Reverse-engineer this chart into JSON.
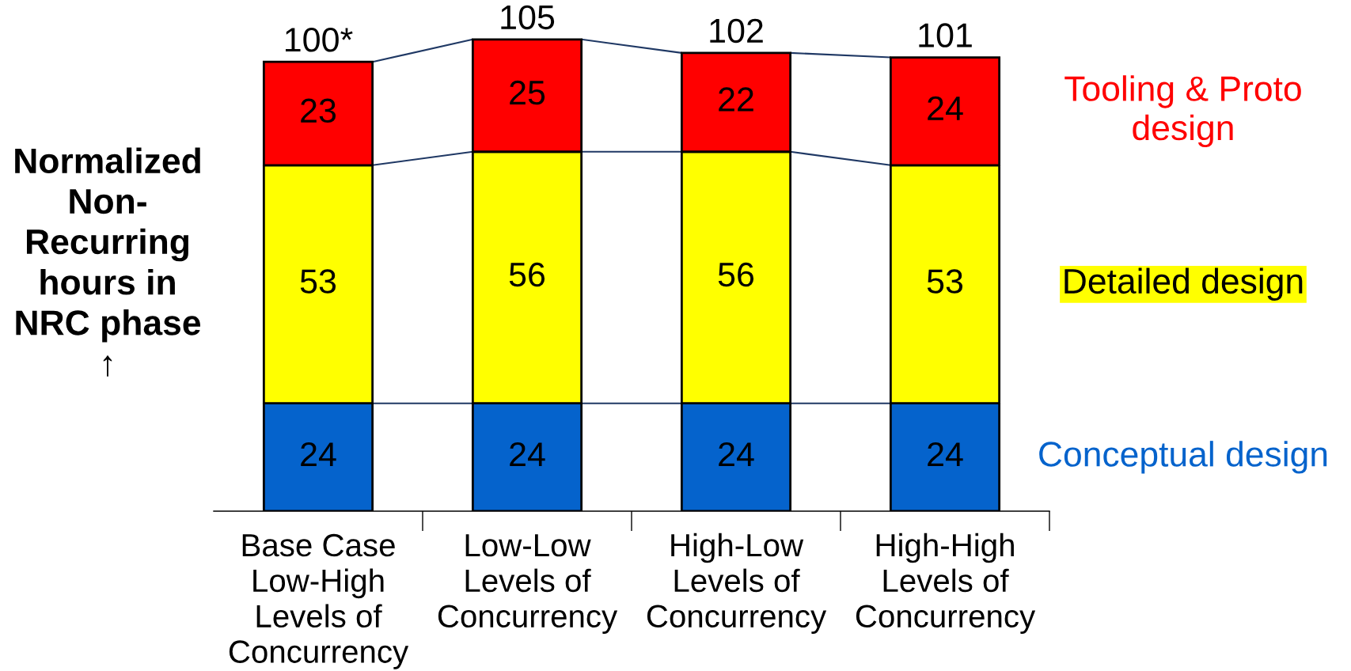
{
  "chart_data": {
    "type": "bar",
    "stacked": true,
    "ylabel": "Normalized\nNon-\nRecurring\nhours in\nNRC phase\n↑",
    "categories": [
      "Base Case\nLow-High\nLevels of\nConcurrency",
      "Low-Low\nLevels of\nConcurrency",
      "High-Low\nLevels of\nConcurrency",
      "High-High\nLevels of\nConcurrency"
    ],
    "series": [
      {
        "name": "Conceptual design",
        "color": "#0563cc",
        "values": [
          24,
          24,
          24,
          24
        ]
      },
      {
        "name": "Detailed design",
        "color": "#ffff00",
        "values": [
          53,
          56,
          56,
          53
        ]
      },
      {
        "name": "Tooling & Proto\ndesign",
        "color": "#ff0000",
        "values": [
          23,
          25,
          22,
          24
        ]
      }
    ],
    "data_labels": true,
    "totals": [
      "100*",
      "105",
      "102",
      "101"
    ],
    "legend": "right",
    "tick_labels": "x"
  }
}
